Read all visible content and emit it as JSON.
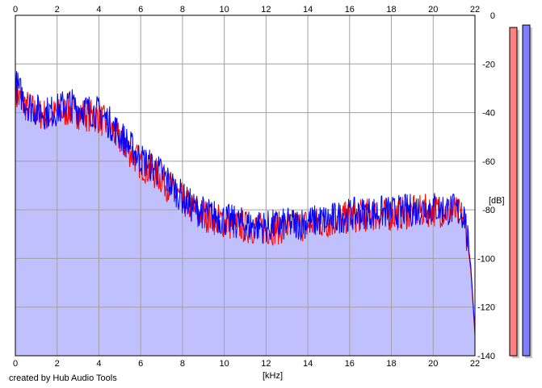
{
  "credit": "created by Hub Audio Tools",
  "chart_data": {
    "type": "area",
    "xlabel": "[kHz]",
    "ylabel": "[dB]",
    "xlim": [
      0,
      22
    ],
    "ylim": [
      -140,
      0
    ],
    "x_ticks": [
      0,
      2,
      4,
      6,
      8,
      10,
      12,
      14,
      16,
      18,
      20,
      22
    ],
    "y_ticks": [
      0,
      -20,
      -40,
      -60,
      -80,
      -100,
      -120,
      -140
    ],
    "grid": true,
    "series": [
      {
        "color": "#ff0000",
        "x": [
          0,
          0.25,
          0.5,
          1,
          1.5,
          2,
          2.5,
          3,
          3.5,
          4,
          4.5,
          5,
          5.5,
          6,
          6.5,
          7,
          7.5,
          8,
          8.5,
          9,
          10,
          11,
          12,
          13,
          14,
          15,
          16,
          17,
          18,
          19,
          20,
          21,
          21.5,
          21.8,
          22
        ],
        "values": [
          -33,
          -35,
          -37,
          -40,
          -41,
          -41,
          -39,
          -40,
          -41,
          -42,
          -46,
          -51,
          -56,
          -61,
          -64,
          -67,
          -72,
          -76,
          -80,
          -82,
          -85,
          -87,
          -88,
          -87,
          -86,
          -85,
          -83,
          -82,
          -82,
          -81,
          -80,
          -81,
          -83,
          -105,
          -132
        ]
      },
      {
        "color": "#0000ff",
        "x": [
          0,
          0.25,
          0.5,
          1,
          1.5,
          2,
          2.5,
          3,
          3.5,
          4,
          4.5,
          5,
          5.5,
          6,
          6.5,
          7,
          7.5,
          8,
          8.5,
          9,
          10,
          11,
          12,
          13,
          14,
          15,
          16,
          17,
          18,
          19,
          20,
          21,
          21.5,
          21.8,
          22
        ],
        "values": [
          -28,
          -32,
          -36,
          -39,
          -40,
          -39,
          -36,
          -38,
          -39,
          -40,
          -44,
          -49,
          -54,
          -59,
          -62,
          -65,
          -70,
          -75,
          -79,
          -81,
          -84,
          -86,
          -87,
          -86,
          -85,
          -84,
          -82,
          -81,
          -81,
          -80,
          -79,
          -80,
          -82,
          -103,
          -130
        ]
      }
    ],
    "fill_color": "#c0c0ff",
    "level_meters": [
      {
        "color": "#ff8080",
        "level_db": -5
      },
      {
        "color": "#8080ff",
        "level_db": -4
      }
    ]
  }
}
